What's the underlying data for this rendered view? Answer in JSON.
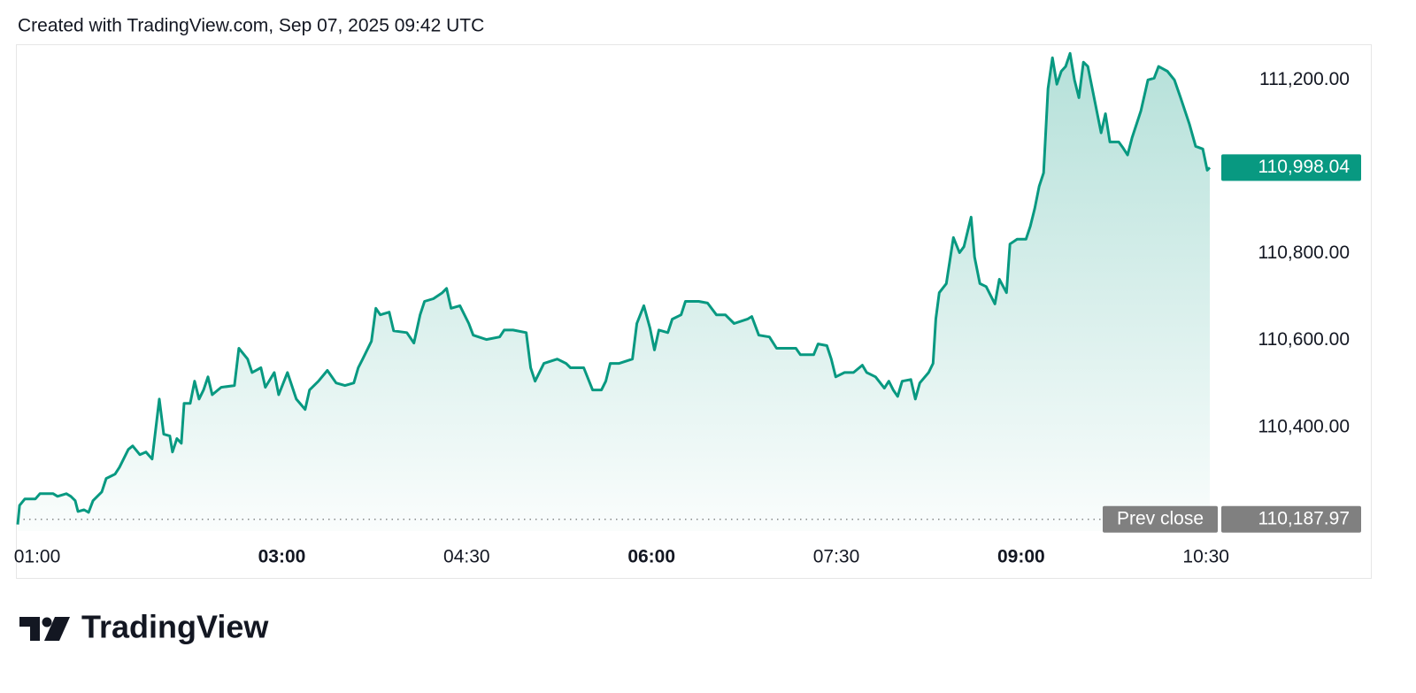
{
  "header": "Created with TradingView.com, Sep 07, 2025 09:42 UTC",
  "brand": "TradingView",
  "chart_data": {
    "type": "area",
    "color": "#089981",
    "x": [
      0.856,
      0.871,
      0.914,
      1.0,
      1.036,
      1.144,
      1.179,
      1.251,
      1.287,
      1.323,
      1.345,
      1.395,
      1.431,
      1.467,
      1.538,
      1.574,
      1.646,
      1.682,
      1.754,
      1.789,
      1.847,
      1.897,
      1.947,
      2.005,
      2.041,
      2.091,
      2.112,
      2.148,
      2.184,
      2.206,
      2.256,
      2.292,
      2.328,
      2.364,
      2.4,
      2.435,
      2.507,
      2.615,
      2.651,
      2.722,
      2.758,
      2.83,
      2.866,
      2.938,
      2.974,
      3.045,
      3.117,
      3.189,
      3.225,
      3.297,
      3.369,
      3.44,
      3.512,
      3.584,
      3.62,
      3.656,
      3.727,
      3.763,
      3.799,
      3.871,
      3.907,
      4.014,
      4.072,
      4.122,
      4.158,
      4.23,
      4.302,
      4.337,
      4.373,
      4.445,
      4.517,
      4.553,
      4.66,
      4.768,
      4.804,
      4.876,
      4.983,
      5.019,
      5.055,
      5.127,
      5.235,
      5.306,
      5.342,
      5.45,
      5.522,
      5.594,
      5.629,
      5.665,
      5.737,
      5.845,
      5.881,
      5.938,
      5.988,
      6.024,
      6.06,
      6.132,
      6.168,
      6.24,
      6.275,
      6.383,
      6.455,
      6.527,
      6.599,
      6.67,
      6.778,
      6.814,
      6.871,
      6.957,
      7.015,
      7.172,
      7.208,
      7.316,
      7.352,
      7.423,
      7.459,
      7.495,
      7.567,
      7.639,
      7.711,
      7.746,
      7.818,
      7.89,
      7.926,
      7.962,
      7.998,
      8.034,
      8.105,
      8.141,
      8.177,
      8.249,
      8.285,
      8.307,
      8.335,
      8.393,
      8.45,
      8.5,
      8.536,
      8.594,
      8.622,
      8.665,
      8.716,
      8.787,
      8.823,
      8.881,
      8.909,
      8.967,
      9.039,
      9.074,
      9.11,
      9.146,
      9.182,
      9.218,
      9.254,
      9.29,
      9.326,
      9.361,
      9.397,
      9.433,
      9.469,
      9.505,
      9.541,
      9.613,
      9.649,
      9.684,
      9.72,
      9.792,
      9.828,
      9.864,
      9.9,
      9.972,
      10.029,
      10.079,
      10.115,
      10.187,
      10.244,
      10.294,
      10.366,
      10.416,
      10.474,
      10.51,
      10.531
    ],
    "values": [
      110176,
      110220,
      110235,
      110235,
      110247,
      110247,
      110241,
      110247,
      110241,
      110231,
      110206,
      110210,
      110204,
      110231,
      110251,
      110282,
      110292,
      110308,
      110349,
      110357,
      110337,
      110343,
      110327,
      110465,
      110384,
      110380,
      110343,
      110374,
      110363,
      110455,
      110455,
      110506,
      110465,
      110486,
      110516,
      110475,
      110492,
      110496,
      110582,
      110557,
      110526,
      110537,
      110492,
      110526,
      110475,
      110526,
      110465,
      110441,
      110486,
      110506,
      110531,
      110502,
      110496,
      110502,
      110537,
      110557,
      110598,
      110674,
      110659,
      110665,
      110622,
      110618,
      110594,
      110659,
      110690,
      110696,
      110710,
      110720,
      110674,
      110680,
      110639,
      110612,
      110602,
      110608,
      110624,
      110624,
      110618,
      110537,
      110506,
      110547,
      110557,
      110547,
      110537,
      110537,
      110486,
      110486,
      110506,
      110547,
      110547,
      110557,
      110639,
      110680,
      110628,
      110578,
      110624,
      110618,
      110649,
      110659,
      110690,
      110690,
      110686,
      110659,
      110659,
      110639,
      110649,
      110655,
      110612,
      110608,
      110582,
      110582,
      110567,
      110567,
      110592,
      110588,
      110557,
      110516,
      110526,
      110526,
      110543,
      110526,
      110516,
      110490,
      110506,
      110486,
      110471,
      110506,
      110510,
      110465,
      110502,
      110526,
      110547,
      110649,
      110710,
      110731,
      110837,
      110802,
      110816,
      110884,
      110792,
      110731,
      110724,
      110684,
      110741,
      110710,
      110822,
      110833,
      110833,
      110863,
      110904,
      110955,
      110986,
      111180,
      111251,
      111190,
      111220,
      111231,
      111261,
      111200,
      111159,
      111241,
      111231,
      111129,
      111078,
      111122,
      111057,
      111057,
      111043,
      111027,
      111067,
      111129,
      111200,
      111204,
      111231,
      111220,
      111200,
      111159,
      111098,
      111047,
      111041,
      110992,
      110998.04
    ],
    "xlim": [
      0.856,
      10.61
    ],
    "ylim": [
      110161,
      111278
    ],
    "xticks": [
      {
        "value": 1,
        "label": "01:00"
      },
      {
        "value": 3,
        "label": "03:00"
      },
      {
        "value": 4.5,
        "label": "04:30"
      },
      {
        "value": 6,
        "label": "06:00"
      },
      {
        "value": 7.5,
        "label": "07:30"
      },
      {
        "value": 9,
        "label": "09:00"
      },
      {
        "value": 10.5,
        "label": "10:30"
      }
    ],
    "yticks": [
      {
        "value": 110400,
        "label": "110,400.00"
      },
      {
        "value": 110600,
        "label": "110,600.00"
      },
      {
        "value": 110800,
        "label": "110,800.00"
      },
      {
        "value": 111200,
        "label": "111,200.00"
      }
    ],
    "last_price": {
      "value": 110998.04,
      "label": "110,998.04"
    },
    "prev_close": {
      "name": "Prev close",
      "value": 110187.97,
      "label": "110,187.97"
    }
  }
}
